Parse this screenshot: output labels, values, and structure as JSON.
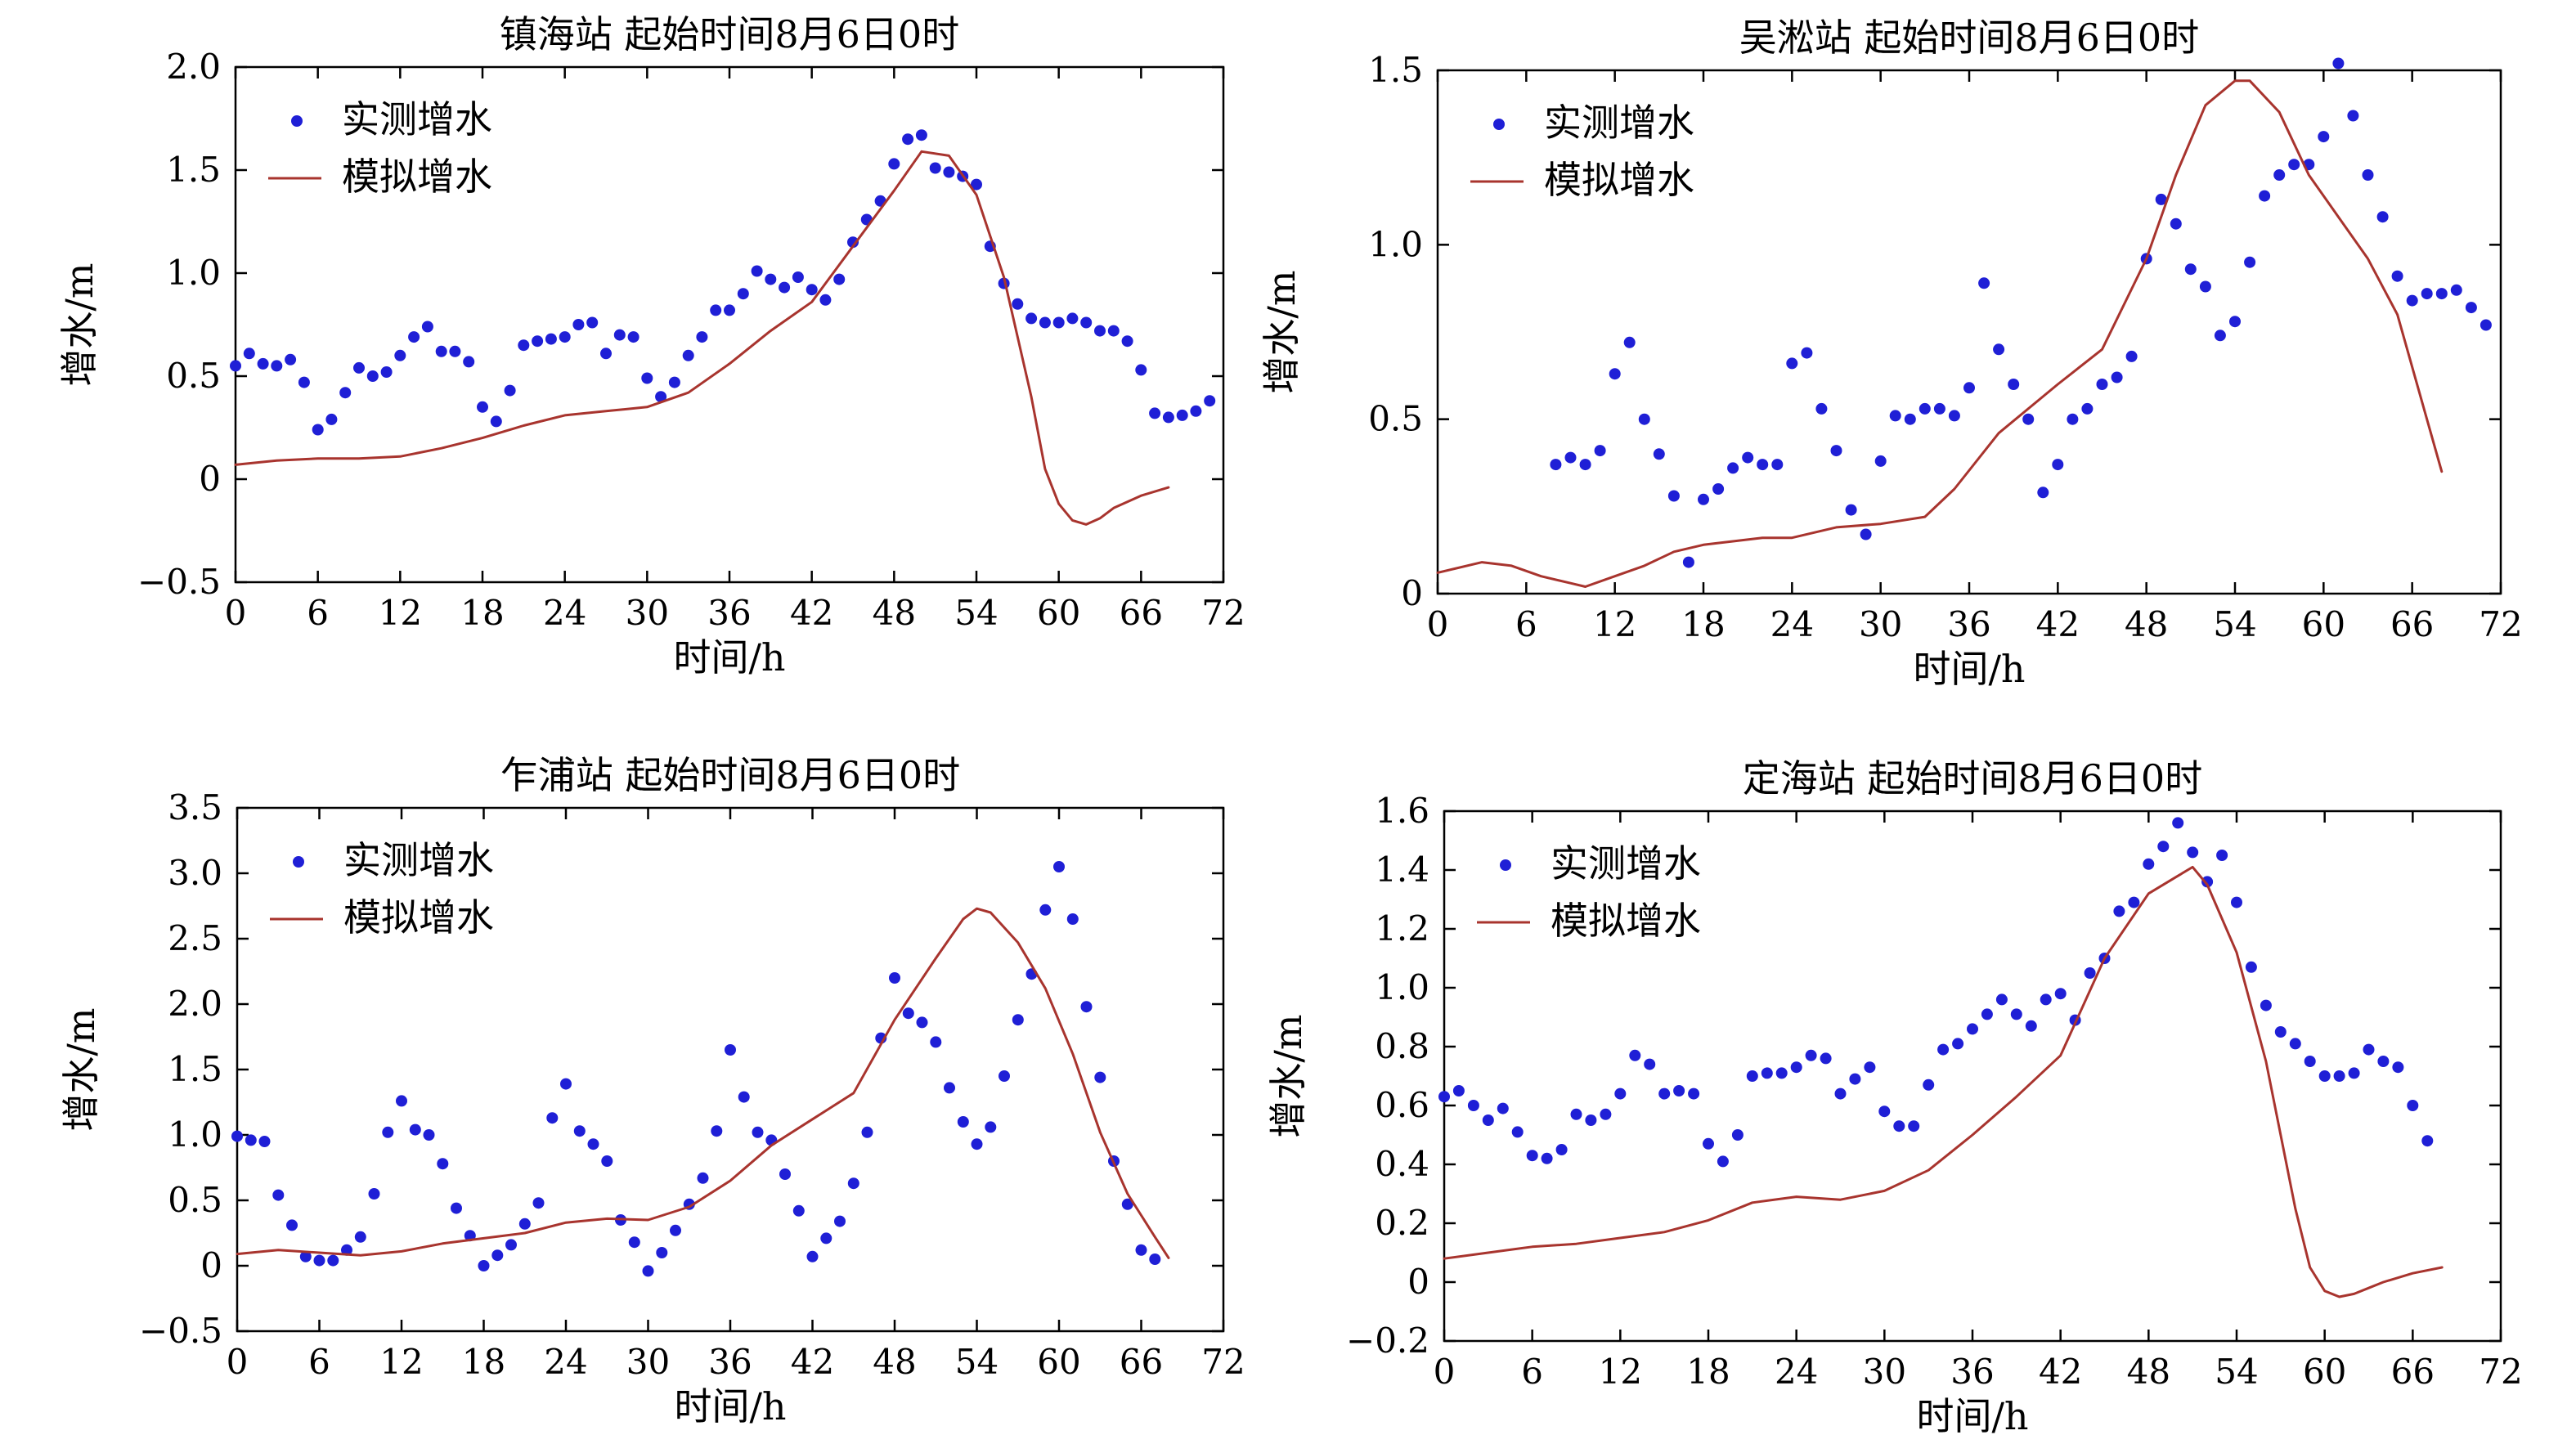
{
  "figure": {
    "charts": [
      {
        "title": "镇海站 起始时间8月6日0时",
        "xlabel": "时间/h",
        "ylabel": "增水/m",
        "legend_observed": "实测增水",
        "legend_simulated": "模拟增水"
      },
      {
        "title": "吴淞站 起始时间8月6日0时",
        "xlabel": "时间/h",
        "ylabel": "增水/m",
        "legend_observed": "实测增水",
        "legend_simulated": "模拟增水"
      },
      {
        "title": "乍浦站 起始时间8月6日0时",
        "xlabel": "时间/h",
        "ylabel": "增水/m",
        "legend_observed": "实测增水",
        "legend_simulated": "模拟增水"
      },
      {
        "title": "定海站 起始时间8月6日0时",
        "xlabel": "时间/h",
        "ylabel": "增水/m",
        "legend_observed": "实测增水",
        "legend_simulated": "模拟增水"
      }
    ]
  },
  "colors": {
    "observed": "#1f1fd6",
    "simulated": "#a8342e",
    "axis": "#000000"
  },
  "chart_data": [
    {
      "type": "scatter",
      "title": "镇海站 起始时间8月6日0时",
      "xlabel": "时间/h",
      "ylabel": "增水/m",
      "xlim": [
        0,
        72
      ],
      "ylim": [
        -0.5,
        2.0
      ],
      "xticks": [
        0,
        6,
        12,
        18,
        24,
        30,
        36,
        42,
        48,
        54,
        60,
        66,
        72
      ],
      "yticks": [
        -0.5,
        0,
        0.5,
        1.0,
        1.5,
        2.0
      ],
      "ytick_labels": [
        "−0.5",
        "0",
        "0.5",
        "1.0",
        "1.5",
        "2.0"
      ],
      "legend_position": "top-left",
      "series": [
        {
          "name": "实测增水",
          "kind": "markers",
          "color": "#1f1fd6",
          "x": [
            0,
            1,
            2,
            3,
            4,
            5,
            6,
            7,
            8,
            9,
            10,
            11,
            12,
            13,
            14,
            15,
            16,
            17,
            18,
            19,
            20,
            21,
            22,
            23,
            24,
            25,
            26,
            27,
            28,
            29,
            30,
            31,
            32,
            33,
            34,
            35,
            36,
            37,
            38,
            39,
            40,
            41,
            42,
            43,
            44,
            45,
            46,
            47,
            48,
            49,
            50,
            51,
            52,
            53,
            54,
            55,
            56,
            57,
            58,
            59,
            60,
            61,
            62,
            63,
            64,
            65,
            66,
            67,
            68,
            69,
            70,
            71
          ],
          "y": [
            0.55,
            0.61,
            0.56,
            0.55,
            0.58,
            0.47,
            0.24,
            0.29,
            0.42,
            0.54,
            0.5,
            0.52,
            0.6,
            0.69,
            0.74,
            0.62,
            0.62,
            0.57,
            0.35,
            0.28,
            0.43,
            0.65,
            0.67,
            0.68,
            0.69,
            0.75,
            0.76,
            0.61,
            0.7,
            0.69,
            0.49,
            0.4,
            0.47,
            0.6,
            0.69,
            0.82,
            0.82,
            0.9,
            1.01,
            0.97,
            0.93,
            0.98,
            0.92,
            0.87,
            0.97,
            1.15,
            1.26,
            1.35,
            1.53,
            1.65,
            1.67,
            1.51,
            1.49,
            1.47,
            1.43,
            1.13,
            0.95,
            0.85,
            0.78,
            0.76,
            0.76,
            0.78,
            0.76,
            0.72,
            0.72,
            0.67,
            0.53,
            0.32,
            0.3,
            0.31,
            0.33,
            0.38
          ]
        },
        {
          "name": "模拟增水",
          "kind": "line",
          "color": "#a8342e",
          "x": [
            0,
            3,
            6,
            9,
            12,
            15,
            18,
            21,
            24,
            27,
            30,
            33,
            36,
            39,
            42,
            45,
            48,
            50,
            52,
            54,
            56,
            58,
            59,
            60,
            61,
            62,
            63,
            64,
            66,
            68
          ],
          "y": [
            0.07,
            0.09,
            0.1,
            0.1,
            0.11,
            0.15,
            0.2,
            0.26,
            0.31,
            0.33,
            0.35,
            0.42,
            0.56,
            0.72,
            0.86,
            1.13,
            1.4,
            1.59,
            1.57,
            1.38,
            0.98,
            0.4,
            0.05,
            -0.12,
            -0.2,
            -0.22,
            -0.19,
            -0.14,
            -0.08,
            -0.04
          ]
        }
      ]
    },
    {
      "type": "scatter",
      "title": "吴淞站 起始时间8月6日0时",
      "xlabel": "时间/h",
      "ylabel": "增水/m",
      "xlim": [
        0,
        72
      ],
      "ylim": [
        0,
        1.5
      ],
      "xticks": [
        0,
        6,
        12,
        18,
        24,
        30,
        36,
        42,
        48,
        54,
        60,
        66,
        72
      ],
      "yticks": [
        0,
        0.5,
        1.0,
        1.5
      ],
      "ytick_labels": [
        "0",
        "0.5",
        "1.0",
        "1.5"
      ],
      "legend_position": "top-left",
      "series": [
        {
          "name": "实测增水",
          "kind": "markers",
          "color": "#1f1fd6",
          "x": [
            8,
            9,
            10,
            11,
            12,
            13,
            14,
            15,
            16,
            17,
            18,
            19,
            20,
            21,
            22,
            23,
            24,
            25,
            26,
            27,
            28,
            29,
            30,
            31,
            32,
            33,
            34,
            35,
            36,
            37,
            38,
            39,
            40,
            41,
            42,
            43,
            44,
            45,
            46,
            47,
            48,
            49,
            50,
            51,
            52,
            53,
            54,
            55,
            56,
            57,
            58,
            59,
            60,
            61,
            62,
            63,
            64,
            65,
            66,
            67,
            68,
            69,
            70,
            71
          ],
          "y": [
            0.37,
            0.39,
            0.37,
            0.41,
            0.63,
            0.72,
            0.5,
            0.4,
            0.28,
            0.09,
            0.27,
            0.3,
            0.36,
            0.39,
            0.37,
            0.37,
            0.66,
            0.69,
            0.53,
            0.41,
            0.24,
            0.17,
            0.38,
            0.51,
            0.5,
            0.53,
            0.53,
            0.51,
            0.59,
            0.89,
            0.7,
            0.6,
            0.5,
            0.29,
            0.37,
            0.5,
            0.53,
            0.6,
            0.62,
            0.68,
            0.96,
            1.13,
            1.06,
            0.93,
            0.88,
            0.74,
            0.78,
            0.95,
            1.14,
            1.2,
            1.23,
            1.23,
            1.31,
            1.52,
            1.37,
            1.2,
            1.08,
            0.91,
            0.84,
            0.86,
            0.86,
            0.87,
            0.82,
            0.77
          ]
        },
        {
          "name": "模拟增水",
          "kind": "line",
          "color": "#a8342e",
          "x": [
            0,
            3,
            5,
            7,
            9,
            10,
            12,
            14,
            16,
            18,
            20,
            22,
            24,
            27,
            30,
            33,
            35,
            38,
            42,
            45,
            48,
            50,
            52,
            54,
            55,
            57,
            59,
            61,
            63,
            65,
            67,
            68
          ],
          "y": [
            0.06,
            0.09,
            0.08,
            0.05,
            0.03,
            0.02,
            0.05,
            0.08,
            0.12,
            0.14,
            0.15,
            0.16,
            0.16,
            0.19,
            0.2,
            0.22,
            0.3,
            0.46,
            0.6,
            0.7,
            0.96,
            1.2,
            1.4,
            1.47,
            1.47,
            1.38,
            1.2,
            1.08,
            0.96,
            0.8,
            0.5,
            0.35
          ]
        }
      ]
    },
    {
      "type": "scatter",
      "title": "乍浦站 起始时间8月6日0时",
      "xlabel": "时间/h",
      "ylabel": "增水/m",
      "xlim": [
        0,
        72
      ],
      "ylim": [
        -0.5,
        3.5
      ],
      "xticks": [
        0,
        6,
        12,
        18,
        24,
        30,
        36,
        42,
        48,
        54,
        60,
        66,
        72
      ],
      "yticks": [
        -0.5,
        0,
        0.5,
        1.0,
        1.5,
        2.0,
        2.5,
        3.0,
        3.5
      ],
      "ytick_labels": [
        "−0.5",
        "0",
        "0.5",
        "1.0",
        "1.5",
        "2.0",
        "2.5",
        "3.0",
        "3.5"
      ],
      "legend_position": "top-left",
      "series": [
        {
          "name": "实测增水",
          "kind": "markers",
          "color": "#1f1fd6",
          "x": [
            0,
            1,
            2,
            3,
            4,
            5,
            6,
            7,
            8,
            9,
            10,
            11,
            12,
            13,
            14,
            15,
            16,
            17,
            18,
            19,
            20,
            21,
            22,
            23,
            24,
            25,
            26,
            27,
            28,
            29,
            30,
            31,
            32,
            33,
            34,
            35,
            36,
            37,
            38,
            39,
            40,
            41,
            42,
            43,
            44,
            45,
            46,
            47,
            48,
            49,
            50,
            51,
            52,
            53,
            54,
            55,
            56,
            57,
            58,
            59,
            60,
            61,
            62,
            63,
            64,
            65,
            66,
            67
          ],
          "y": [
            0.99,
            0.96,
            0.95,
            0.54,
            0.31,
            0.07,
            0.04,
            0.04,
            0.12,
            0.22,
            0.55,
            1.02,
            1.26,
            1.04,
            1.0,
            0.78,
            0.44,
            0.23,
            0.0,
            0.08,
            0.16,
            0.32,
            0.48,
            1.13,
            1.39,
            1.03,
            0.93,
            0.8,
            0.35,
            0.18,
            -0.04,
            0.1,
            0.27,
            0.47,
            0.67,
            1.03,
            1.65,
            1.29,
            1.02,
            0.96,
            0.7,
            0.42,
            0.07,
            0.21,
            0.34,
            0.63,
            1.02,
            1.74,
            2.2,
            1.93,
            1.86,
            1.71,
            1.36,
            1.1,
            0.93,
            1.06,
            1.45,
            1.88,
            2.23,
            2.72,
            3.05,
            2.65,
            1.98,
            1.44,
            0.8,
            0.47,
            0.12,
            0.05
          ]
        },
        {
          "name": "模拟增水",
          "kind": "line",
          "color": "#a8342e",
          "x": [
            0,
            3,
            6,
            9,
            12,
            15,
            18,
            21,
            24,
            27,
            30,
            33,
            36,
            39,
            42,
            45,
            48,
            51,
            53,
            54,
            55,
            57,
            59,
            61,
            63,
            65,
            67,
            68
          ],
          "y": [
            0.09,
            0.12,
            0.1,
            0.08,
            0.11,
            0.17,
            0.21,
            0.25,
            0.33,
            0.36,
            0.35,
            0.45,
            0.65,
            0.92,
            1.12,
            1.32,
            1.88,
            2.35,
            2.65,
            2.73,
            2.7,
            2.47,
            2.12,
            1.62,
            1.02,
            0.55,
            0.22,
            0.06
          ]
        }
      ]
    },
    {
      "type": "scatter",
      "title": "定海站 起始时间8月6日0时",
      "xlabel": "时间/h",
      "ylabel": "增水/m",
      "xlim": [
        0,
        72
      ],
      "ylim": [
        -0.2,
        1.6
      ],
      "xticks": [
        0,
        6,
        12,
        18,
        24,
        30,
        36,
        42,
        48,
        54,
        60,
        66,
        72
      ],
      "yticks": [
        -0.2,
        0,
        0.2,
        0.4,
        0.6,
        0.8,
        1.0,
        1.2,
        1.4,
        1.6
      ],
      "ytick_labels": [
        "−0.2",
        "0",
        "0.2",
        "0.4",
        "0.6",
        "0.8",
        "1.0",
        "1.2",
        "1.4",
        "1.6"
      ],
      "legend_position": "top-left",
      "series": [
        {
          "name": "实测增水",
          "kind": "markers",
          "color": "#1f1fd6",
          "x": [
            0,
            1,
            2,
            3,
            4,
            5,
            6,
            7,
            8,
            9,
            10,
            11,
            12,
            13,
            14,
            15,
            16,
            17,
            18,
            19,
            20,
            21,
            22,
            23,
            24,
            25,
            26,
            27,
            28,
            29,
            30,
            31,
            32,
            33,
            34,
            35,
            36,
            37,
            38,
            39,
            40,
            41,
            42,
            43,
            44,
            45,
            46,
            47,
            48,
            49,
            50,
            51,
            52,
            53,
            54,
            55,
            56,
            57,
            58,
            59,
            60,
            61,
            62,
            63,
            64,
            65,
            66,
            67
          ],
          "y": [
            0.63,
            0.65,
            0.6,
            0.55,
            0.59,
            0.51,
            0.43,
            0.42,
            0.45,
            0.57,
            0.55,
            0.57,
            0.64,
            0.77,
            0.74,
            0.64,
            0.65,
            0.64,
            0.47,
            0.41,
            0.5,
            0.7,
            0.71,
            0.71,
            0.73,
            0.77,
            0.76,
            0.64,
            0.69,
            0.73,
            0.58,
            0.53,
            0.53,
            0.67,
            0.79,
            0.81,
            0.86,
            0.91,
            0.96,
            0.91,
            0.87,
            0.96,
            0.98,
            0.89,
            1.05,
            1.1,
            1.26,
            1.29,
            1.42,
            1.48,
            1.56,
            1.46,
            1.36,
            1.45,
            1.29,
            1.07,
            0.94,
            0.85,
            0.81,
            0.75,
            0.7,
            0.7,
            0.71,
            0.79,
            0.75,
            0.73,
            0.6,
            0.48
          ]
        },
        {
          "name": "模拟增水",
          "kind": "line",
          "color": "#a8342e",
          "x": [
            0,
            3,
            6,
            9,
            12,
            15,
            18,
            21,
            24,
            27,
            30,
            33,
            36,
            39,
            42,
            45,
            48,
            50,
            51,
            52,
            54,
            56,
            58,
            59,
            60,
            61,
            62,
            63,
            64,
            66,
            68
          ],
          "y": [
            0.08,
            0.1,
            0.12,
            0.13,
            0.15,
            0.17,
            0.21,
            0.27,
            0.29,
            0.28,
            0.31,
            0.38,
            0.5,
            0.63,
            0.77,
            1.1,
            1.32,
            1.38,
            1.41,
            1.35,
            1.12,
            0.75,
            0.25,
            0.05,
            -0.03,
            -0.05,
            -0.04,
            -0.02,
            0.0,
            0.03,
            0.05
          ]
        }
      ]
    }
  ]
}
